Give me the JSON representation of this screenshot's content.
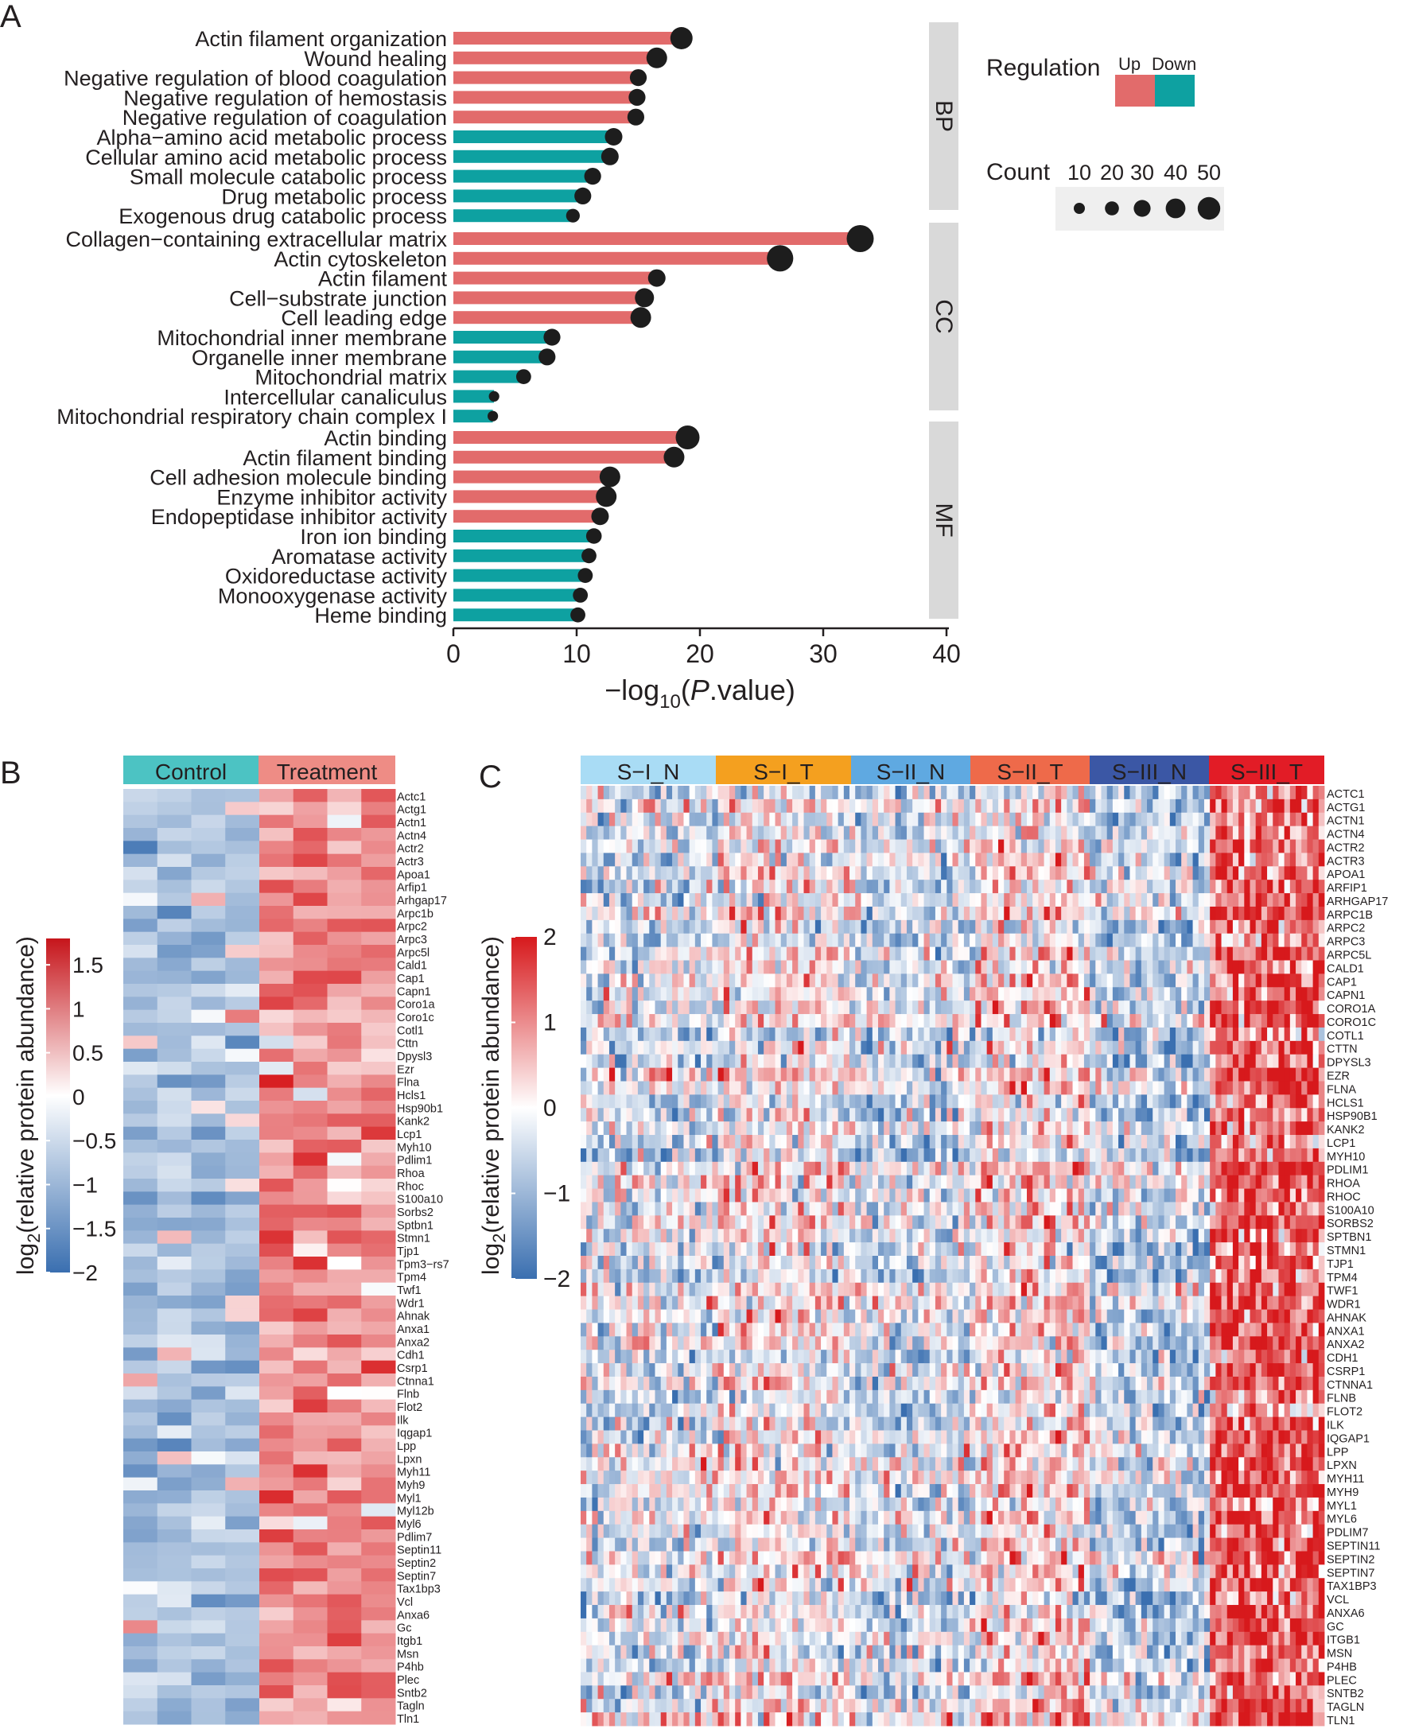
{
  "panels": {
    "a": "A",
    "b": "B",
    "c": "C"
  },
  "colors": {
    "up": "#e26b6b",
    "down": "#0ea1a1",
    "dot": "#1d1d1d",
    "facet": "#d9d9d9",
    "legend_bg": "#efefef",
    "heat_low": "#3a6fb0",
    "heat_mid": "#ffffff",
    "heat_high": "#d7191c",
    "control": "#4cc3c3",
    "treatment": "#ee8c85",
    "s1n": "#a9dcf5",
    "s1t": "#f4a01f",
    "s2n": "#5fa9e1",
    "s2t": "#ee6a4a",
    "s3n": "#3b57a5",
    "s3t": "#e21c26"
  },
  "chart_data": [
    {
      "type": "bar",
      "title": "",
      "xlabel_prefix": "−log",
      "xlabel_sub": "10",
      "xlabel_paren": "(",
      "xlabel_italic": "P",
      "xlabel_suffix": ".value)",
      "xlim": [
        0,
        40
      ],
      "xticks": [
        "0",
        "10",
        "20",
        "30",
        "40"
      ],
      "xtick_values": [
        0,
        10,
        20,
        30,
        40
      ],
      "legend": {
        "regulation_title": "Regulation",
        "up_label": "Up",
        "down_label": "Down",
        "count_title": "Count",
        "count_values": [
          "10",
          "20",
          "30",
          "40",
          "50"
        ]
      },
      "facets": [
        {
          "name": "BP",
          "terms": [
            {
              "term": "Actin filament organization",
              "value": 18.5,
              "reg": "up",
              "count": 45
            },
            {
              "term": "Wound healing",
              "value": 16.5,
              "reg": "up",
              "count": 40
            },
            {
              "term": "Negative regulation of blood coagulation",
              "value": 15.0,
              "reg": "up",
              "count": 28
            },
            {
              "term": "Negative regulation of hemostasis",
              "value": 14.9,
              "reg": "up",
              "count": 28
            },
            {
              "term": "Negative regulation of coagulation",
              "value": 14.8,
              "reg": "up",
              "count": 28
            },
            {
              "term": "Alpha−amino acid metabolic process",
              "value": 13.0,
              "reg": "down",
              "count": 30
            },
            {
              "term": "Cellular amino acid metabolic process",
              "value": 12.7,
              "reg": "down",
              "count": 30
            },
            {
              "term": "Small molecule catabolic process",
              "value": 11.3,
              "reg": "down",
              "count": 28
            },
            {
              "term": "Drug metabolic process",
              "value": 10.5,
              "reg": "down",
              "count": 28
            },
            {
              "term": "Exogenous drug catabolic process",
              "value": 9.7,
              "reg": "down",
              "count": 18
            }
          ]
        },
        {
          "name": "CC",
          "terms": [
            {
              "term": "Collagen−containing extracellular matrix",
              "value": 33.0,
              "reg": "up",
              "count": 60
            },
            {
              "term": "Actin cytoskeleton",
              "value": 26.5,
              "reg": "up",
              "count": 58
            },
            {
              "term": "Actin filament",
              "value": 16.5,
              "reg": "up",
              "count": 30
            },
            {
              "term": "Cell−substrate junction",
              "value": 15.5,
              "reg": "up",
              "count": 35
            },
            {
              "term": "Cell leading edge",
              "value": 15.2,
              "reg": "up",
              "count": 40
            },
            {
              "term": "Mitochondrial inner membrane",
              "value": 8.0,
              "reg": "down",
              "count": 28
            },
            {
              "term": "Organelle inner membrane",
              "value": 7.6,
              "reg": "down",
              "count": 28
            },
            {
              "term": "Mitochondrial matrix",
              "value": 5.7,
              "reg": "down",
              "count": 22
            },
            {
              "term": "Intercellular canaliculus",
              "value": 3.3,
              "reg": "down",
              "count": 8
            },
            {
              "term": "Mitochondrial respiratory chain complex I",
              "value": 3.2,
              "reg": "down",
              "count": 8
            }
          ]
        },
        {
          "name": "MF",
          "terms": [
            {
              "term": "Actin binding",
              "value": 19.0,
              "reg": "up",
              "count": 50
            },
            {
              "term": "Actin filament binding",
              "value": 17.9,
              "reg": "up",
              "count": 40
            },
            {
              "term": "Cell adhesion molecule binding",
              "value": 12.7,
              "reg": "up",
              "count": 40
            },
            {
              "term": "Enzyme inhibitor activity",
              "value": 12.4,
              "reg": "up",
              "count": 40
            },
            {
              "term": "Endopeptidase inhibitor activity",
              "value": 11.9,
              "reg": "up",
              "count": 30
            },
            {
              "term": "Iron ion binding",
              "value": 11.4,
              "reg": "down",
              "count": 24
            },
            {
              "term": "Aromatase activity",
              "value": 11.0,
              "reg": "down",
              "count": 22
            },
            {
              "term": "Oxidoreductase activity",
              "value": 10.7,
              "reg": "down",
              "count": 22
            },
            {
              "term": "Monooxygenase activity",
              "value": 10.3,
              "reg": "down",
              "count": 22
            },
            {
              "term": "Heme binding",
              "value": 10.1,
              "reg": "down",
              "count": 22
            }
          ]
        }
      ]
    },
    {
      "type": "heatmap",
      "groups": [
        {
          "label": "Control",
          "columns": 4
        },
        {
          "label": "Treatment",
          "columns": 4
        }
      ],
      "rows": [
        "Actc1",
        "Actg1",
        "Actn1",
        "Actn4",
        "Actr2",
        "Actr3",
        "Apoa1",
        "Arfip1",
        "Arhgap17",
        "Arpc1b",
        "Arpc2",
        "Arpc3",
        "Arpc5l",
        "Cald1",
        "Cap1",
        "Capn1",
        "Coro1a",
        "Coro1c",
        "Cotl1",
        "Cttn",
        "Dpysl3",
        "Ezr",
        "Flna",
        "Hcls1",
        "Hsp90b1",
        "Kank2",
        "Lcp1",
        "Myh10",
        "Pdlim1",
        "Rhoa",
        "Rhoc",
        "S100a10",
        "Sorbs2",
        "Sptbn1",
        "Stmn1",
        "Tjp1",
        "Tpm3−rs7",
        "Tpm4",
        "Twf1",
        "Wdr1",
        "Ahnak",
        "Anxa1",
        "Anxa2",
        "Cdh1",
        "Csrp1",
        "Ctnna1",
        "Flnb",
        "Flot2",
        "Ilk",
        "Iqgap1",
        "Lpp",
        "Lpxn",
        "Myh11",
        "Myh9",
        "Myl1",
        "Myl12b",
        "Myl6",
        "Pdlim7",
        "Septin11",
        "Septin2",
        "Septin7",
        "Tax1bp3",
        "Vcl",
        "Anxa6",
        "Gc",
        "Itgb1",
        "Msn",
        "P4hb",
        "Plec",
        "Sntb2",
        "Tagln",
        "Tln1"
      ],
      "color_range": [
        -2,
        1.8
      ],
      "colorbar_ticks": [
        "1.5",
        "1",
        "0.5",
        "0",
        "−0.5",
        "−1",
        "−1.5",
        "−2"
      ],
      "colorbar_values": [
        1.5,
        1,
        0.5,
        0,
        -0.5,
        -1,
        -1.5,
        -2
      ],
      "ylabel_sub": "2",
      "ylabel_prefix": "log",
      "ylabel_suffix": "(relative protein abundance)"
    },
    {
      "type": "heatmap",
      "groups": [
        {
          "label": "S−I_N"
        },
        {
          "label": "S−I_T"
        },
        {
          "label": "S−II_N"
        },
        {
          "label": "S−II_T"
        },
        {
          "label": "S−III_N"
        },
        {
          "label": "S−III_T"
        }
      ],
      "rows": [
        "ACTC1",
        "ACTG1",
        "ACTN1",
        "ACTN4",
        "ACTR2",
        "ACTR3",
        "APOA1",
        "ARFIP1",
        "ARHGAP17",
        "ARPC1B",
        "ARPC2",
        "ARPC3",
        "ARPC5L",
        "CALD1",
        "CAP1",
        "CAPN1",
        "CORO1A",
        "CORO1C",
        "COTL1",
        "CTTN",
        "DPYSL3",
        "EZR",
        "FLNA",
        "HCLS1",
        "HSP90B1",
        "KANK2",
        "LCP1",
        "MYH10",
        "PDLIM1",
        "RHOA",
        "RHOC",
        "S100A10",
        "SORBS2",
        "SPTBN1",
        "STMN1",
        "TJP1",
        "TPM4",
        "TWF1",
        "WDR1",
        "AHNAK",
        "ANXA1",
        "ANXA2",
        "CDH1",
        "CSRP1",
        "CTNNA1",
        "FLNB",
        "FLOT2",
        "ILK",
        "IQGAP1",
        "LPP",
        "LPXN",
        "MYH11",
        "MYH9",
        "MYL1",
        "MYL6",
        "PDLIM7",
        "SEPTIN11",
        "SEPTIN2",
        "SEPTIN7",
        "TAX1BP3",
        "VCL",
        "ANXA6",
        "GC",
        "ITGB1",
        "MSN",
        "P4HB",
        "PLEC",
        "SNTB2",
        "TAGLN",
        "TLN1"
      ],
      "color_range": [
        -2,
        2
      ],
      "colorbar_ticks": [
        "2",
        "1",
        "0",
        "−1",
        "−2"
      ],
      "colorbar_values": [
        2,
        1,
        0,
        -1,
        -2
      ],
      "ylabel_sub": "2",
      "ylabel_prefix": "log",
      "ylabel_suffix": "(relative protein abundance)"
    }
  ]
}
